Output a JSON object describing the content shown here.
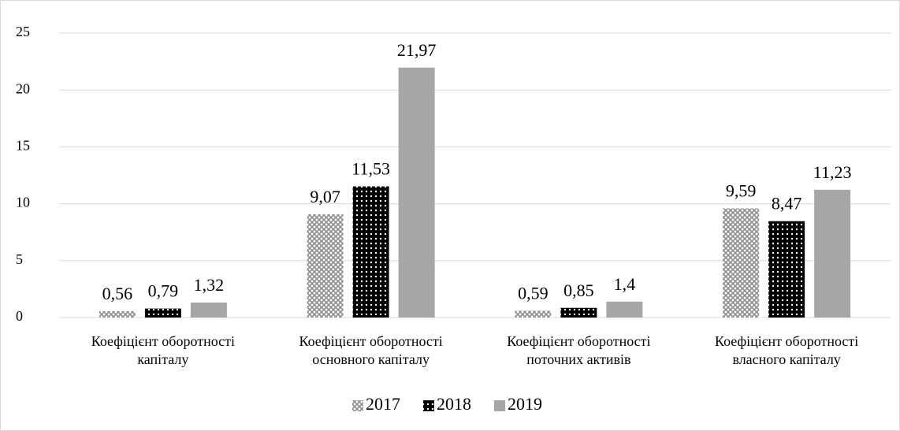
{
  "chart_data": {
    "type": "bar",
    "categories": [
      "Коефіцієнт оборотності капіталу",
      "Коефіцієнт оборотності основного капіталу",
      "Коефіцієнт оборотності поточних активів",
      "Коефіцієнт оборотності власного капіталу"
    ],
    "series": [
      {
        "name": "2017",
        "color": "#8c8c8c",
        "pattern": "crosshatch",
        "values": [
          0.56,
          9.07,
          0.59,
          9.59
        ],
        "value_labels": [
          "0,56",
          "9,07",
          "0,59",
          "9,59"
        ]
      },
      {
        "name": "2018",
        "color": "#000000",
        "pattern": "dots",
        "values": [
          0.79,
          11.53,
          0.85,
          8.47
        ],
        "value_labels": [
          "0,79",
          "11,53",
          "0,85",
          "8,47"
        ]
      },
      {
        "name": "2019",
        "color": "#a6a6a6",
        "pattern": "solid",
        "values": [
          1.32,
          21.97,
          1.4,
          11.23
        ],
        "value_labels": [
          "1,32",
          "21,97",
          "1,4",
          "11,23"
        ]
      }
    ],
    "ylim": [
      0,
      25
    ],
    "yticks": [
      0,
      5,
      10,
      15,
      20,
      25
    ],
    "grid": true,
    "legend": "bottom"
  }
}
